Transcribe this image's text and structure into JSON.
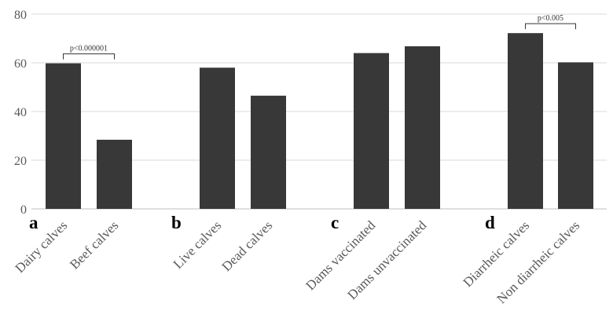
{
  "chart_data": {
    "type": "bar",
    "title": "",
    "xlabel": "",
    "ylabel": "",
    "ylim": [
      0,
      80
    ],
    "yticks": [
      "0",
      "20",
      "40",
      "60",
      "80"
    ],
    "grid": true,
    "bar_color": "#383838",
    "categories": [
      "Dairy calves",
      "Beef calves",
      "Live calves",
      "Dead calves",
      "Dams vaccinated",
      "Dams unvaccinated",
      "Diarrheic calves",
      "Non diarrheic calves"
    ],
    "values": [
      59.8,
      28.4,
      58.0,
      46.5,
      64.0,
      66.8,
      72.2,
      60.2
    ],
    "panel_labels": [
      "a",
      "b",
      "c",
      "d"
    ],
    "annotations": [
      {
        "text": "p<0.000001",
        "from": "Dairy calves",
        "to": "Beef calves"
      },
      {
        "text": "p<0.005",
        "from": "Diarrheic calves",
        "to": "Non diarrheic calves"
      }
    ]
  }
}
